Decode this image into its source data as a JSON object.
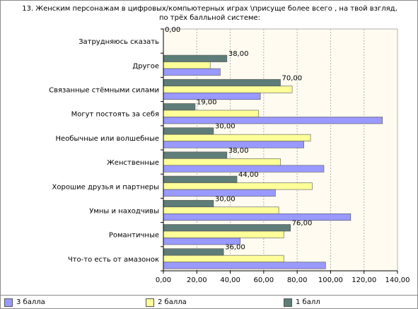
{
  "chart_data": {
    "type": "bar",
    "orientation": "horizontal",
    "title_lines": [
      "13. Женским персонажам в  цифровых/компьютерных  играх \\присуще более всего , на твой взгляд,",
      "по трёх балльной системе:"
    ],
    "categories": [
      "Затрудняюсь сказать",
      "Другое",
      "Связанные стёмными силами",
      "Могут постоять  за себя",
      "Необычные или волшебные",
      "Женственные",
      "Хорошие друзья и партнеры",
      "Умны и находчивы",
      "Романтичные",
      "Что-то есть от амазонок"
    ],
    "series": [
      {
        "name": "1 балл",
        "color": "#5f7d78",
        "values": [
          0,
          38,
          70,
          19,
          30,
          38,
          44,
          30,
          76,
          36
        ]
      },
      {
        "name": "2 балла",
        "color": "#ffff99",
        "values": [
          0,
          28,
          77,
          57,
          88,
          70,
          89,
          69,
          72,
          72
        ]
      },
      {
        "name": "3 балла",
        "color": "#9999ff",
        "values": [
          0,
          34,
          58,
          131,
          84,
          96,
          67,
          112,
          46,
          97
        ]
      }
    ],
    "data_labels_series": "1 балл",
    "data_labels": [
      "0,00",
      "38,00",
      "70,00",
      "19,00",
      "30,00",
      "38,00",
      "44,00",
      "30,00",
      "76,00",
      "36,00"
    ],
    "x_ticks": [
      "0,00",
      "20,00",
      "40,00",
      "60,00",
      "80,00",
      "100,00",
      "120,00",
      "140,00"
    ],
    "xlim": [
      0,
      140
    ],
    "grid": true,
    "plot_background": "#fffbf0",
    "legend_position": "bottom",
    "legend": [
      {
        "label": "3 балла",
        "color": "#9999ff"
      },
      {
        "label": "2 балла",
        "color": "#ffff99"
      },
      {
        "label": "1 балл",
        "color": "#5f7d78"
      }
    ]
  }
}
